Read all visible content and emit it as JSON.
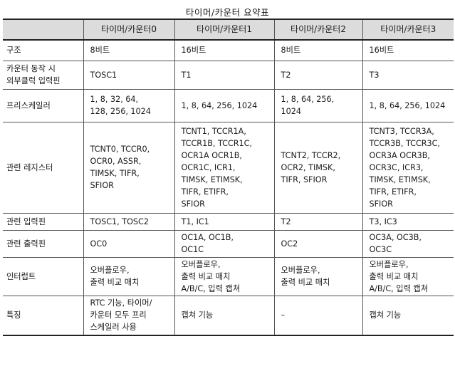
{
  "title": "타이머/카운터 요약표",
  "headers": [
    "",
    "타이머/카운터0",
    "타이머/카운터1",
    "타이머/카운터2",
    "타이머/카운터3"
  ],
  "rows": [
    {
      "label": [
        "구조"
      ],
      "cells": [
        [
          "8비트"
        ],
        [
          "16비트"
        ],
        [
          "8비트"
        ],
        [
          "16비트"
        ]
      ]
    },
    {
      "label": [
        "카운터 동작 시",
        "외부클럭 입력핀"
      ],
      "cells": [
        [
          "TOSC1"
        ],
        [
          "T1"
        ],
        [
          "T2"
        ],
        [
          "T3"
        ]
      ]
    },
    {
      "label": [
        "프리스케일러"
      ],
      "cells": [
        [
          "1, 8, 32, 64,",
          "128, 256, 1024"
        ],
        [
          "1, 8, 64, 256, 1024"
        ],
        [
          "1, 8, 64, 256,",
          "1024"
        ],
        [
          "1, 8, 64, 256, 1024"
        ]
      ]
    },
    {
      "label": [
        "관련 레지스터"
      ],
      "cells": [
        [
          "TCNT0, TCCR0,",
          "OCR0, ASSR,",
          "TIMSK, TIFR,",
          "SFIOR"
        ],
        [
          "TCNT1, TCCR1A,",
          "TCCR1B, TCCR1C,",
          "OCR1A OCR1B,",
          "OCR1C, ICR1,",
          "TIMSK, ETIMSK,",
          "TIFR, ETIFR,",
          "SFIOR"
        ],
        [
          "TCNT2, TCCR2,",
          "OCR2, TIMSK,",
          "TIFR, SFIOR"
        ],
        [
          "TCNT3, TCCR3A,",
          "TCCR3B, TCCR3C,",
          "OCR3A OCR3B,",
          "OCR3C, ICR3,",
          "TIMSK, ETIMSK,",
          "TIFR, ETIFR,",
          "SFIOR"
        ]
      ]
    },
    {
      "label": [
        "관련 입력핀"
      ],
      "cells": [
        [
          "TOSC1, TOSC2"
        ],
        [
          "T1, IC1"
        ],
        [
          "T2"
        ],
        [
          "T3, IC3"
        ]
      ]
    },
    {
      "label": [
        "관련 출력핀"
      ],
      "cells": [
        [
          "OC0"
        ],
        [
          "OC1A, OC1B,",
          "OC1C"
        ],
        [
          "OC2"
        ],
        [
          "OC3A, OC3B,",
          "OC3C"
        ]
      ]
    },
    {
      "label": [
        "인터럽트"
      ],
      "cells": [
        [
          "오버플로우,",
          "출력 비교 매치"
        ],
        [
          "오버플로우,",
          "출력 비교 매치",
          "A/B/C, 입력 캡쳐"
        ],
        [
          "오버플로우,",
          "출력 비교 매치"
        ],
        [
          "오버플로우,",
          "출력 비교 매치",
          "A/B/C, 입력 캡쳐"
        ]
      ]
    },
    {
      "label": [
        "특징"
      ],
      "cells": [
        [
          "RTC 기능, 타이머/",
          "카운터 모두 프리",
          "스케일러 사용"
        ],
        [
          "캡쳐 기능"
        ],
        [
          "–"
        ],
        [
          "캡쳐 기능"
        ]
      ]
    }
  ]
}
